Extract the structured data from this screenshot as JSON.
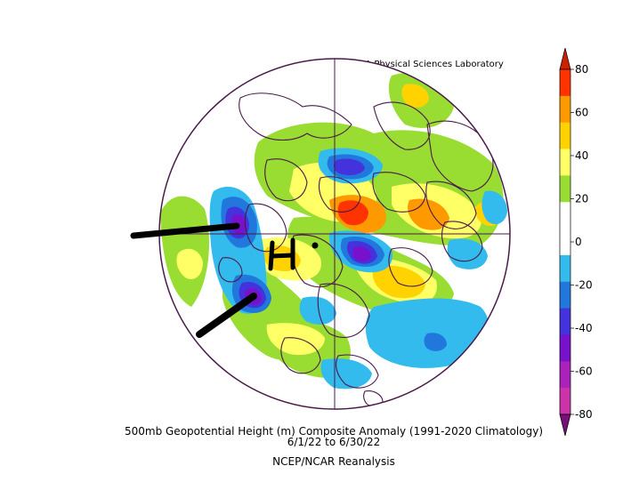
{
  "credit": "NOAA Physical Sciences Laboratory",
  "caption": {
    "line1": "500mb Geopotential Height (m) Composite Anomaly (1991-2020 Climatology)",
    "line2": "6/1/22  to 6/30/22",
    "line3": "NCEP/NCAR Reanalysis"
  },
  "annotation": {
    "high_marker": "H"
  },
  "colorbar": {
    "labels": [
      "80",
      "60",
      "40",
      "20",
      "0",
      "-20",
      "-40",
      "-60",
      "-80"
    ],
    "colors": [
      "#ff3300",
      "#ff9900",
      "#ffd200",
      "#ffff66",
      "#99dd33",
      "#ffffff",
      "#ffffff",
      "#33bbee",
      "#2277dd",
      "#4433dd",
      "#7711cc",
      "#aa22bb",
      "#cc33aa"
    ],
    "top_arrow_color": "#cc2200",
    "bottom_arrow_color": "#771177"
  },
  "anomaly_colors": {
    "strong_positive": "#ff3300",
    "positive_orange": "#ff9900",
    "positive_yellow_orange": "#ffd200",
    "positive_yellow": "#ffff66",
    "weak_positive": "#99dd33",
    "weak_negative": "#33bbee",
    "negative_blue": "#2277dd",
    "negative_indigo": "#4433dd",
    "negative_purple": "#7711cc",
    "strong_negative": "#aa22bb"
  }
}
